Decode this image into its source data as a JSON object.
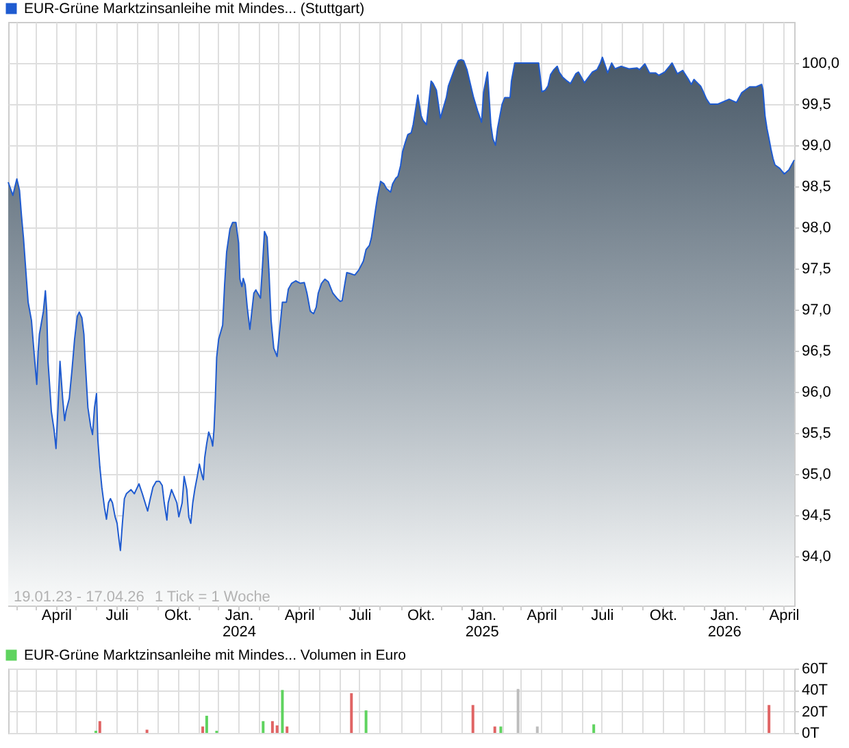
{
  "chart_data": [
    {
      "type": "area",
      "series": [
        {
          "name": "EUR-Grüne Marktzinsanleihe mit Mindes... (Stuttgart)",
          "color": "#1f5bd0",
          "x": [
            "2023-01-19",
            "2023-01-26",
            "2023-02-01",
            "2023-02-05",
            "2023-02-08",
            "2023-02-11",
            "2023-02-15",
            "2023-02-18",
            "2023-02-23",
            "2023-02-28",
            "2023-03-03",
            "2023-03-05",
            "2023-03-07",
            "2023-03-13",
            "2023-03-16",
            "2023-03-18",
            "2023-03-20",
            "2023-03-25",
            "2023-03-29",
            "2023-04-01",
            "2023-04-04",
            "2023-04-07",
            "2023-04-11",
            "2023-04-14",
            "2023-04-16",
            "2023-04-21",
            "2023-04-25",
            "2023-04-29",
            "2023-05-03",
            "2023-05-06",
            "2023-05-10",
            "2023-05-13",
            "2023-05-15",
            "2023-05-19",
            "2023-05-23",
            "2023-05-26",
            "2023-05-29",
            "2023-06-01",
            "2023-06-03",
            "2023-06-06",
            "2023-06-09",
            "2023-06-13",
            "2023-06-16",
            "2023-06-19",
            "2023-06-22",
            "2023-06-25",
            "2023-06-29",
            "2023-07-02",
            "2023-07-04",
            "2023-07-07",
            "2023-07-10",
            "2023-07-13",
            "2023-07-16",
            "2023-07-23",
            "2023-07-28",
            "2023-08-04",
            "2023-08-09",
            "2023-08-17",
            "2023-08-21",
            "2023-08-25",
            "2023-08-30",
            "2023-09-04",
            "2023-09-08",
            "2023-09-11",
            "2023-09-15",
            "2023-09-17",
            "2023-09-22",
            "2023-09-26",
            "2023-09-30",
            "2023-10-03",
            "2023-10-08",
            "2023-10-11",
            "2023-10-15",
            "2023-10-18",
            "2023-10-21",
            "2023-10-24",
            "2023-10-27",
            "2023-10-31",
            "2023-11-03",
            "2023-11-07",
            "2023-11-09",
            "2023-11-11",
            "2023-11-14",
            "2023-11-17",
            "2023-11-21",
            "2023-11-23",
            "2023-11-25",
            "2023-11-27",
            "2023-11-29",
            "2023-12-02",
            "2023-12-08",
            "2023-12-11",
            "2023-12-14",
            "2023-12-19",
            "2023-12-23",
            "2023-12-28",
            "2024-01-01",
            "2024-01-03",
            "2024-01-06",
            "2024-01-08",
            "2024-01-11",
            "2024-01-14",
            "2024-01-18",
            "2024-01-24",
            "2024-01-27",
            "2024-02-03",
            "2024-02-06",
            "2024-02-09",
            "2024-02-13",
            "2024-02-16",
            "2024-02-19",
            "2024-02-23",
            "2024-02-28",
            "2024-03-03",
            "2024-03-07",
            "2024-03-13",
            "2024-03-16",
            "2024-03-21",
            "2024-03-27",
            "2024-04-03",
            "2024-04-09",
            "2024-04-13",
            "2024-04-18",
            "2024-04-23",
            "2024-04-27",
            "2024-04-30",
            "2024-05-05",
            "2024-05-10",
            "2024-05-15",
            "2024-05-22",
            "2024-05-28",
            "2024-06-02",
            "2024-06-05",
            "2024-06-09",
            "2024-06-12",
            "2024-06-17",
            "2024-06-24",
            "2024-06-30",
            "2024-07-07",
            "2024-07-11",
            "2024-07-16",
            "2024-07-19",
            "2024-07-22",
            "2024-07-25",
            "2024-07-28",
            "2024-08-02",
            "2024-08-07",
            "2024-08-11",
            "2024-08-17",
            "2024-08-20",
            "2024-08-25",
            "2024-08-28",
            "2024-09-01",
            "2024-09-04",
            "2024-09-08",
            "2024-09-12",
            "2024-09-17",
            "2024-09-20",
            "2024-09-27",
            "2024-10-02",
            "2024-10-05",
            "2024-10-10",
            "2024-10-17",
            "2024-10-20",
            "2024-10-25",
            "2024-10-31",
            "2024-11-09",
            "2024-11-12",
            "2024-11-17",
            "2024-11-22",
            "2024-11-27",
            "2024-12-01",
            "2024-12-05",
            "2024-12-10",
            "2024-12-15",
            "2024-12-20",
            "2024-12-26",
            "2025-01-01",
            "2025-01-04",
            "2025-01-08",
            "2025-01-10",
            "2025-01-12",
            "2025-01-15",
            "2025-01-18",
            "2025-01-22",
            "2025-01-25",
            "2025-01-28",
            "2025-02-01",
            "2025-02-05",
            "2025-02-13",
            "2025-02-15",
            "2025-02-20",
            "2025-03-28",
            "2025-03-30",
            "2025-04-02",
            "2025-04-07",
            "2025-04-11",
            "2025-04-15",
            "2025-04-20",
            "2025-04-25",
            "2025-04-28",
            "2025-05-03",
            "2025-05-10",
            "2025-05-15",
            "2025-05-23",
            "2025-05-27",
            "2025-06-05",
            "2025-06-17",
            "2025-06-24",
            "2025-06-29",
            "2025-07-02",
            "2025-07-05",
            "2025-07-10",
            "2025-07-16",
            "2025-07-21",
            "2025-07-30",
            "2025-08-11",
            "2025-08-23",
            "2025-08-27",
            "2025-09-04",
            "2025-09-11",
            "2025-09-20",
            "2025-09-25",
            "2025-10-04",
            "2025-10-12",
            "2025-10-15",
            "2025-10-23",
            "2025-10-31",
            "2025-11-08",
            "2025-11-13",
            "2025-11-17",
            "2025-11-27",
            "2025-11-30",
            "2025-12-06",
            "2025-12-11",
            "2025-12-23",
            "2026-01-09",
            "2026-01-20",
            "2026-01-28",
            "2026-02-09",
            "2026-02-18",
            "2026-02-27",
            "2026-03-01",
            "2026-03-04",
            "2026-03-07",
            "2026-03-10",
            "2026-03-13",
            "2026-03-16",
            "2026-03-19",
            "2026-03-26",
            "2026-04-02",
            "2026-04-09",
            "2026-04-17"
          ],
          "values": [
            98.55,
            98.39,
            98.59,
            98.45,
            98.14,
            97.87,
            97.42,
            97.09,
            96.87,
            96.37,
            96.09,
            96.48,
            96.7,
            96.98,
            97.23,
            96.98,
            96.37,
            95.76,
            95.54,
            95.31,
            95.81,
            96.37,
            95.92,
            95.65,
            95.76,
            95.92,
            96.26,
            96.64,
            96.92,
            96.97,
            96.9,
            96.7,
            96.37,
            95.81,
            95.59,
            95.48,
            95.81,
            95.98,
            95.42,
            95.09,
            94.84,
            94.59,
            94.45,
            94.65,
            94.7,
            94.65,
            94.48,
            94.4,
            94.26,
            94.07,
            94.4,
            94.7,
            94.76,
            94.81,
            94.76,
            94.88,
            94.76,
            94.55,
            94.7,
            94.84,
            94.91,
            94.91,
            94.86,
            94.65,
            94.44,
            94.65,
            94.81,
            94.73,
            94.65,
            94.48,
            94.65,
            94.97,
            94.81,
            94.48,
            94.4,
            94.65,
            94.81,
            94.98,
            95.12,
            94.98,
            94.93,
            95.2,
            95.37,
            95.51,
            95.42,
            95.34,
            95.54,
            95.92,
            96.42,
            96.64,
            96.81,
            97.31,
            97.7,
            97.98,
            98.06,
            98.06,
            97.81,
            97.37,
            97.28,
            97.38,
            97.3,
            97.03,
            96.76,
            97.2,
            97.24,
            97.14,
            97.53,
            97.95,
            97.88,
            97.42,
            96.87,
            96.53,
            96.43,
            96.76,
            97.09,
            97.09,
            97.25,
            97.32,
            97.35,
            97.32,
            97.33,
            97.2,
            96.98,
            96.95,
            97.03,
            97.2,
            97.32,
            97.37,
            97.34,
            97.2,
            97.14,
            97.1,
            97.11,
            97.31,
            97.45,
            97.44,
            97.42,
            97.48,
            97.59,
            97.73,
            97.78,
            97.87,
            98.03,
            98.2,
            98.36,
            98.56,
            98.53,
            98.47,
            98.43,
            98.53,
            98.6,
            98.62,
            98.75,
            98.92,
            99.03,
            99.13,
            99.15,
            99.25,
            99.61,
            99.36,
            99.3,
            99.25,
            99.78,
            99.75,
            99.67,
            99.33,
            99.58,
            99.72,
            99.83,
            99.94,
            100.03,
            100.04,
            100.03,
            99.92,
            99.75,
            99.58,
            99.42,
            99.28,
            99.64,
            99.81,
            99.89,
            99.64,
            99.25,
            99.08,
            99.0,
            99.2,
            99.33,
            99.5,
            99.58,
            99.58,
            99.78,
            100.0,
            100.0,
            99.86,
            99.65,
            99.67,
            99.72,
            99.86,
            99.92,
            99.96,
            99.89,
            99.83,
            99.78,
            99.75,
            99.87,
            99.89,
            99.76,
            99.89,
            99.92,
            100.0,
            100.07,
            100.0,
            99.88,
            100.0,
            99.93,
            99.96,
            99.93,
            99.94,
            99.92,
            99.99,
            99.88,
            99.88,
            99.85,
            99.89,
            99.97,
            100.0,
            99.87,
            99.91,
            99.81,
            99.74,
            99.8,
            99.72,
            99.67,
            99.56,
            99.5,
            99.5,
            99.56,
            99.52,
            99.64,
            99.71,
            99.71,
            99.74,
            99.67,
            99.36,
            99.2,
            99.08,
            98.95,
            98.84,
            98.76,
            98.72,
            98.65,
            98.7,
            98.82
          ]
        }
      ],
      "xlim": [
        "2023-01-19",
        "2026-04-17"
      ],
      "xticks": [
        {
          "value": "2023-02-01",
          "label": null
        },
        {
          "value": "2023-03-01",
          "label": null
        },
        {
          "value": "2023-04-01",
          "label": "April"
        },
        {
          "value": "2023-05-01",
          "label": null
        },
        {
          "value": "2023-06-01",
          "label": null
        },
        {
          "value": "2023-07-01",
          "label": "Juli"
        },
        {
          "value": "2023-08-01",
          "label": null
        },
        {
          "value": "2023-09-01",
          "label": null
        },
        {
          "value": "2023-10-01",
          "label": "Okt."
        },
        {
          "value": "2023-11-01",
          "label": null
        },
        {
          "value": "2023-12-01",
          "label": null
        },
        {
          "value": "2024-01-01",
          "label": "Jan. 2024"
        },
        {
          "value": "2024-02-01",
          "label": null
        },
        {
          "value": "2024-03-01",
          "label": null
        },
        {
          "value": "2024-04-01",
          "label": "April"
        },
        {
          "value": "2024-05-01",
          "label": null
        },
        {
          "value": "2024-06-01",
          "label": null
        },
        {
          "value": "2024-07-01",
          "label": "Juli"
        },
        {
          "value": "2024-08-01",
          "label": null
        },
        {
          "value": "2024-09-01",
          "label": null
        },
        {
          "value": "2024-10-01",
          "label": "Okt."
        },
        {
          "value": "2024-11-01",
          "label": null
        },
        {
          "value": "2024-12-01",
          "label": null
        },
        {
          "value": "2025-01-01",
          "label": "Jan. 2025"
        },
        {
          "value": "2025-02-01",
          "label": null
        },
        {
          "value": "2025-03-01",
          "label": null
        },
        {
          "value": "2025-04-01",
          "label": "April"
        },
        {
          "value": "2025-05-01",
          "label": null
        },
        {
          "value": "2025-06-01",
          "label": null
        },
        {
          "value": "2025-07-01",
          "label": "Juli"
        },
        {
          "value": "2025-08-01",
          "label": null
        },
        {
          "value": "2025-09-01",
          "label": null
        },
        {
          "value": "2025-10-01",
          "label": "Okt."
        },
        {
          "value": "2025-11-01",
          "label": null
        },
        {
          "value": "2025-12-01",
          "label": null
        },
        {
          "value": "2026-01-01",
          "label": "Jan. 2026"
        },
        {
          "value": "2026-02-01",
          "label": null
        },
        {
          "value": "2026-03-01",
          "label": null
        },
        {
          "value": "2026-04-01",
          "label": "April"
        }
      ],
      "ylim": [
        93.4,
        100.5
      ],
      "yticks": [
        {
          "value": 94,
          "label": "94,0"
        },
        {
          "value": 94.5,
          "label": "94,5"
        },
        {
          "value": 95,
          "label": "95,0"
        },
        {
          "value": 95.5,
          "label": "95,5"
        },
        {
          "value": 96,
          "label": "96,0"
        },
        {
          "value": 96.5,
          "label": "96,5"
        },
        {
          "value": 97,
          "label": "97,0"
        },
        {
          "value": 97.5,
          "label": "97,5"
        },
        {
          "value": 98,
          "label": "98,0"
        },
        {
          "value": 98.5,
          "label": "98,5"
        },
        {
          "value": 99,
          "label": "99,0"
        },
        {
          "value": 99.5,
          "label": "99,5"
        },
        {
          "value": 100,
          "label": "100,0"
        }
      ],
      "grid": true,
      "legend": "top left",
      "annotations": [
        "19.01.23 - 17.04.26",
        "1 Tick = 1 Woche"
      ]
    },
    {
      "type": "bar",
      "series": [
        {
          "name": "EUR-Grüne Marktzinsanleihe mit Mindes... Volumen in Euro",
          "color": "#5fd35f",
          "x": [
            "2023-05-31",
            "2023-06-06",
            "2023-08-16",
            "2023-11-08",
            "2023-11-14",
            "2023-11-29",
            "2024-02-07",
            "2024-02-21",
            "2024-02-28",
            "2024-03-07",
            "2024-03-14",
            "2024-06-19",
            "2024-07-11",
            "2024-12-19",
            "2025-01-21",
            "2025-01-30",
            "2025-02-25",
            "2025-03-26",
            "2025-06-19",
            "2026-03-10"
          ],
          "values": [
            2,
            11,
            3,
            6,
            16,
            2,
            11,
            11,
            7,
            40,
            6,
            37,
            21,
            26,
            6,
            6,
            41,
            6,
            8,
            26
          ],
          "colors": [
            "#5fd35f",
            "#e06464",
            "#e06464",
            "#e06464",
            "#5fd35f",
            "#5fd35f",
            "#5fd35f",
            "#e06464",
            "#e06464",
            "#5fd35f",
            "#e06464",
            "#e06464",
            "#5fd35f",
            "#e06464",
            "#e06464",
            "#5fd35f",
            "#bdbdbd",
            "#bdbdbd",
            "#5fd35f",
            "#e06464"
          ]
        }
      ],
      "xlim": [
        "2023-01-19",
        "2026-04-17"
      ],
      "xticks": [
        {
          "value": "2023-02-01",
          "label": null
        },
        {
          "value": "2023-03-01",
          "label": null
        },
        {
          "value": "2023-04-01",
          "label": null
        },
        {
          "value": "2023-05-01",
          "label": null
        },
        {
          "value": "2023-06-01",
          "label": null
        },
        {
          "value": "2023-07-01",
          "label": null
        },
        {
          "value": "2023-08-01",
          "label": null
        },
        {
          "value": "2023-09-01",
          "label": null
        },
        {
          "value": "2023-10-01",
          "label": null
        },
        {
          "value": "2023-11-01",
          "label": null
        },
        {
          "value": "2023-12-01",
          "label": null
        },
        {
          "value": "2024-01-01",
          "label": null
        },
        {
          "value": "2024-02-01",
          "label": null
        },
        {
          "value": "2024-03-01",
          "label": null
        },
        {
          "value": "2024-04-01",
          "label": null
        },
        {
          "value": "2024-05-01",
          "label": null
        },
        {
          "value": "2024-06-01",
          "label": null
        },
        {
          "value": "2024-07-01",
          "label": null
        },
        {
          "value": "2024-08-01",
          "label": null
        },
        {
          "value": "2024-09-01",
          "label": null
        },
        {
          "value": "2024-10-01",
          "label": null
        },
        {
          "value": "2024-11-01",
          "label": null
        },
        {
          "value": "2024-12-01",
          "label": null
        },
        {
          "value": "2025-01-01",
          "label": null
        },
        {
          "value": "2025-02-01",
          "label": null
        },
        {
          "value": "2025-03-01",
          "label": null
        },
        {
          "value": "2025-04-01",
          "label": null
        },
        {
          "value": "2025-05-01",
          "label": null
        },
        {
          "value": "2025-06-01",
          "label": null
        },
        {
          "value": "2025-07-01",
          "label": null
        },
        {
          "value": "2025-08-01",
          "label": null
        },
        {
          "value": "2025-09-01",
          "label": null
        },
        {
          "value": "2025-10-01",
          "label": null
        },
        {
          "value": "2025-11-01",
          "label": null
        },
        {
          "value": "2025-12-01",
          "label": null
        },
        {
          "value": "2026-01-01",
          "label": null
        },
        {
          "value": "2026-02-01",
          "label": null
        },
        {
          "value": "2026-03-01",
          "label": null
        },
        {
          "value": "2026-04-01",
          "label": null
        }
      ],
      "ylim": [
        0,
        60
      ],
      "yticks": [
        {
          "value": 0,
          "label": "0T"
        },
        {
          "value": 20,
          "label": "20T"
        },
        {
          "value": 40,
          "label": "40T"
        },
        {
          "value": 60,
          "label": "60T"
        }
      ],
      "grid": true,
      "legend": "top left",
      "tick_labels": "y"
    }
  ]
}
